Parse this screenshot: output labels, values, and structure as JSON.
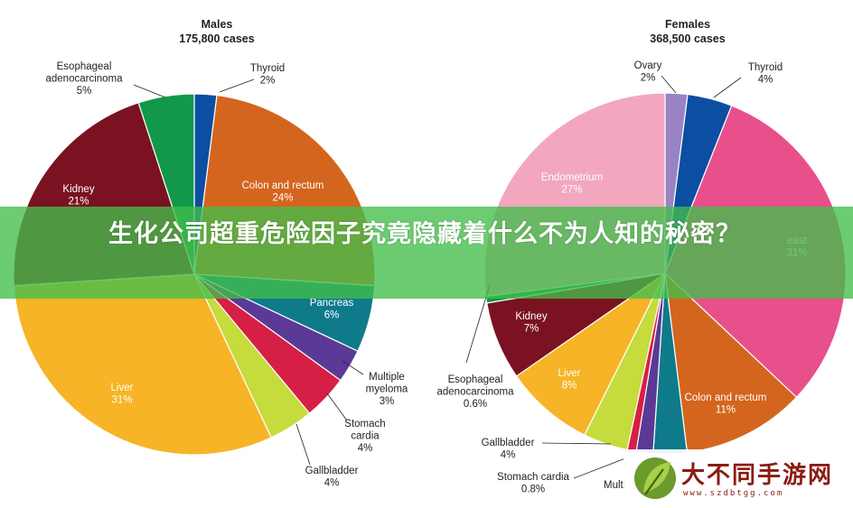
{
  "chart_data": [
    {
      "type": "pie",
      "title": "Males",
      "subtitle": "175,800 cases",
      "slices": [
        {
          "label": "Thyroid",
          "value": 2,
          "value_text": "2%",
          "color": "#0b4ea2",
          "label_pos": "outside"
        },
        {
          "label": "Colon and rectum",
          "value": 24,
          "value_text": "24%",
          "color": "#d4651e",
          "label_pos": "inside"
        },
        {
          "label": "Pancreas",
          "value": 6,
          "value_text": "6%",
          "color": "#0e7a8a",
          "label_pos": "inside"
        },
        {
          "label": "Multiple myeloma",
          "value": 3,
          "value_text": "3%",
          "color": "#5b3a97",
          "label_pos": "outside"
        },
        {
          "label": "Stomach cardia",
          "value": 4,
          "value_text": "4%",
          "color": "#d61f45",
          "label_pos": "outside"
        },
        {
          "label": "Gallbladder",
          "value": 4,
          "value_text": "4%",
          "color": "#c5dc3c",
          "label_pos": "outside"
        },
        {
          "label": "Liver",
          "value": 31,
          "value_text": "31%",
          "color": "#f6b426",
          "label_pos": "inside"
        },
        {
          "label": "Endometrium",
          "value": 0,
          "value_text": "",
          "color": "#71c044",
          "label_pos": "hidden"
        },
        {
          "label": "Kidney",
          "value": 21,
          "value_text": "21%",
          "color": "#7a1222",
          "label_pos": "inside"
        },
        {
          "label": "Esophageal adenocarcinoma",
          "value": 5,
          "value_text": "5%",
          "color": "#11984a",
          "label_pos": "outside"
        }
      ]
    },
    {
      "type": "pie",
      "title": "Females",
      "subtitle": "368,500 cases",
      "slices": [
        {
          "label": "Ovary",
          "value": 2,
          "value_text": "2%",
          "color": "#9a83c4",
          "label_pos": "outside"
        },
        {
          "label": "Thyroid",
          "value": 4,
          "value_text": "4%",
          "color": "#0b4ea2",
          "label_pos": "outside"
        },
        {
          "label": "Breast",
          "value": 31,
          "value_text": "31%",
          "color": "#e8508c",
          "label_pos": "inside"
        },
        {
          "label": "Colon and rectum",
          "value": 11,
          "value_text": "11%",
          "color": "#d4651e",
          "label_pos": "inside"
        },
        {
          "label": "Pancreas",
          "value": 3,
          "value_text": "",
          "color": "#0e7a8a",
          "label_pos": "hidden"
        },
        {
          "label": "Multiple myeloma",
          "value": 1.5,
          "value_text": "",
          "color": "#5b3a97",
          "label_pos": "hidden"
        },
        {
          "label": "Stomach cardia",
          "value": 0.8,
          "value_text": "0.8%",
          "color": "#d61f45",
          "label_pos": "outside"
        },
        {
          "label": "Gallbladder",
          "value": 4,
          "value_text": "4%",
          "color": "#c5dc3c",
          "label_pos": "outside"
        },
        {
          "label": "Liver",
          "value": 8,
          "value_text": "8%",
          "color": "#f6b426",
          "label_pos": "inside"
        },
        {
          "label": "Kidney",
          "value": 7,
          "value_text": "7%",
          "color": "#7a1222",
          "label_pos": "inside"
        },
        {
          "label": "Esophageal adenocarcinoma",
          "value": 0.6,
          "value_text": "0.6%",
          "color": "#11984a",
          "label_pos": "outside"
        },
        {
          "label": "Endometrium",
          "value": 27,
          "value_text": "27%",
          "color": "#f2a7bf",
          "label_pos": "inside"
        }
      ]
    }
  ],
  "overlay": {
    "title": "生化公司超重危险因子究竟隐藏着什么不为人知的秘密？",
    "watermark_name": "大不同手游网",
    "watermark_url": "www.szdbtgg.com",
    "banner_color": "#42be4a"
  },
  "visible_text_fragments": {
    "males_multiple_label": "Multiple\nmyeloma",
    "males_stomach_label": "Stomach\ncardia",
    "males_esophageal_label": "Esophageal\nadenocarcinoma",
    "females_esophageal_label": "Esophageal\nadenocarcinoma",
    "females_breast_visible": "east",
    "females_multi_visible": "Multi"
  }
}
